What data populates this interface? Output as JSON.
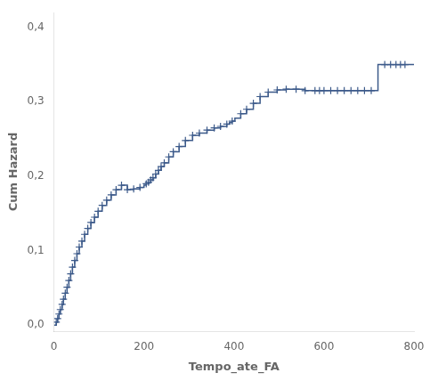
{
  "chart_data": {
    "type": "line",
    "xlabel": "Tempo_ate_FA",
    "ylabel": "Cum Hazard",
    "xlim": [
      0,
      800
    ],
    "ylim": [
      -0.008,
      0.42
    ],
    "xticks": [
      0,
      200,
      400,
      600,
      800
    ],
    "yticks": [
      {
        "value": 0.0,
        "label": "0,0"
      },
      {
        "value": 0.1,
        "label": "0,1"
      },
      {
        "value": 0.2,
        "label": "0,2"
      },
      {
        "value": 0.3,
        "label": "0,3"
      },
      {
        "value": 0.4,
        "label": "0,4"
      }
    ],
    "grid": false,
    "series": [
      {
        "type": "line",
        "line_style": "step",
        "color": "#3c5a8a",
        "x": [
          0,
          5,
          8,
          11,
          14,
          18,
          21,
          25,
          29,
          33,
          37,
          41,
          46,
          51,
          56,
          62,
          68,
          75,
          82,
          90,
          98,
          107,
          117,
          127,
          138,
          150,
          163,
          177,
          191,
          200,
          205,
          210,
          215,
          220,
          226,
          232,
          238,
          245,
          255,
          265,
          278,
          292,
          308,
          323,
          340,
          356,
          370,
          384,
          390,
          396,
          402,
          415,
          428,
          443,
          458,
          476,
          496,
          516,
          538,
          558,
          572,
          580,
          590,
          600,
          615,
          630,
          645,
          660,
          675,
          690,
          705,
          720,
          735,
          748,
          760,
          770,
          780,
          790,
          800
        ],
        "values": [
          0.0,
          0.004,
          0.009,
          0.015,
          0.021,
          0.028,
          0.035,
          0.043,
          0.051,
          0.06,
          0.069,
          0.078,
          0.087,
          0.096,
          0.105,
          0.113,
          0.122,
          0.13,
          0.138,
          0.145,
          0.153,
          0.161,
          0.168,
          0.175,
          0.182,
          0.188,
          0.182,
          0.183,
          0.185,
          0.188,
          0.19,
          0.192,
          0.195,
          0.198,
          0.203,
          0.208,
          0.213,
          0.218,
          0.226,
          0.233,
          0.24,
          0.248,
          0.255,
          0.258,
          0.262,
          0.265,
          0.267,
          0.27,
          0.272,
          0.274,
          0.278,
          0.284,
          0.29,
          0.298,
          0.307,
          0.313,
          0.316,
          0.317,
          0.317,
          0.315,
          0.315,
          0.315,
          0.315,
          0.315,
          0.315,
          0.315,
          0.315,
          0.315,
          0.315,
          0.315,
          0.315,
          0.35,
          0.35,
          0.35,
          0.35,
          0.35,
          0.35,
          0.35,
          0.35
        ]
      },
      {
        "type": "scatter",
        "marker": "plus",
        "color": "#3c5a8a",
        "x": [
          5,
          8,
          11,
          14,
          18,
          21,
          25,
          29,
          33,
          37,
          41,
          46,
          51,
          56,
          62,
          68,
          75,
          82,
          90,
          98,
          107,
          117,
          127,
          138,
          150,
          163,
          177,
          191,
          205,
          210,
          215,
          220,
          226,
          232,
          238,
          245,
          255,
          265,
          278,
          292,
          308,
          323,
          340,
          356,
          370,
          384,
          396,
          415,
          428,
          443,
          458,
          476,
          496,
          516,
          538,
          558,
          580,
          590,
          600,
          615,
          630,
          645,
          660,
          675,
          690,
          705,
          735,
          748,
          760,
          770,
          780
        ],
        "values": [
          0.004,
          0.009,
          0.015,
          0.021,
          0.028,
          0.035,
          0.043,
          0.051,
          0.06,
          0.069,
          0.078,
          0.087,
          0.096,
          0.105,
          0.113,
          0.122,
          0.13,
          0.138,
          0.145,
          0.153,
          0.161,
          0.168,
          0.175,
          0.182,
          0.188,
          0.182,
          0.183,
          0.185,
          0.19,
          0.192,
          0.195,
          0.198,
          0.203,
          0.208,
          0.213,
          0.218,
          0.226,
          0.233,
          0.24,
          0.248,
          0.255,
          0.258,
          0.262,
          0.265,
          0.267,
          0.27,
          0.274,
          0.284,
          0.29,
          0.298,
          0.307,
          0.313,
          0.316,
          0.317,
          0.317,
          0.315,
          0.315,
          0.315,
          0.315,
          0.315,
          0.315,
          0.315,
          0.315,
          0.315,
          0.315,
          0.315,
          0.35,
          0.35,
          0.35,
          0.35,
          0.35
        ]
      }
    ]
  }
}
